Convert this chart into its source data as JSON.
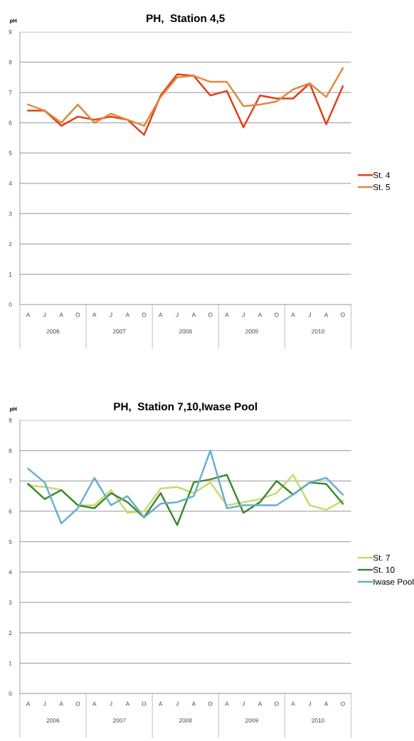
{
  "chart_data": [
    {
      "type": "line",
      "title": "PH,  Station 4,5",
      "ylabel": "pH",
      "categories": [
        "A",
        "J",
        "A",
        "O",
        "A",
        "J",
        "A",
        "O",
        "A",
        "J",
        "A",
        "O",
        "A",
        "J",
        "A",
        "O",
        "A",
        "J",
        "A",
        "O"
      ],
      "series": [
        {
          "name": "St. 4",
          "color": "#e0401a",
          "values": [
            6.4,
            6.4,
            5.9,
            6.2,
            6.1,
            6.2,
            6.1,
            5.6,
            6.9,
            7.6,
            7.55,
            6.9,
            7.05,
            5.85,
            6.9,
            6.8,
            6.8,
            7.3,
            5.95,
            7.2
          ]
        },
        {
          "name": "St. 5",
          "color": "#e08a3c",
          "values": [
            6.6,
            6.4,
            6.0,
            6.6,
            6.0,
            6.3,
            6.1,
            5.9,
            6.85,
            7.5,
            7.55,
            7.35,
            7.35,
            6.55,
            6.6,
            6.7,
            7.1,
            7.3,
            6.85,
            7.8
          ]
        }
      ],
      "ylim": [
        0,
        9
      ],
      "yticks": [
        0,
        1,
        2,
        3,
        4,
        5,
        6,
        7,
        8,
        9
      ],
      "grid": "y",
      "legend": "right",
      "marker": "none",
      "line_style": "solid",
      "annotations": [
        "2006",
        "2007",
        "2008",
        "2009",
        "2010"
      ]
    },
    {
      "type": "line",
      "title": "PH,  Station 7,10,Iwase Pool",
      "ylabel": "pH",
      "categories": [
        "A",
        "J",
        "A",
        "O",
        "A",
        "J",
        "A",
        "O",
        "A",
        "J",
        "A",
        "O",
        "A",
        "J",
        "A",
        "O",
        "A",
        "J",
        "A",
        "O"
      ],
      "series": [
        {
          "name": "St. 7",
          "color": "#c5dd6a",
          "values": [
            6.85,
            6.8,
            6.7,
            6.2,
            6.2,
            6.7,
            5.95,
            6.0,
            6.75,
            6.8,
            6.6,
            6.95,
            6.2,
            6.3,
            6.4,
            6.6,
            7.2,
            6.2,
            6.05,
            6.35
          ]
        },
        {
          "name": "St. 10",
          "color": "#3e8a2e",
          "values": [
            6.9,
            6.4,
            6.7,
            6.2,
            6.1,
            6.6,
            6.3,
            5.8,
            6.6,
            5.55,
            6.95,
            7.05,
            7.2,
            5.95,
            6.3,
            7.0,
            6.55,
            6.95,
            6.9,
            6.25
          ]
        },
        {
          "name": "Iwase Pool",
          "color": "#6aaed0",
          "values": [
            7.4,
            6.95,
            5.6,
            6.1,
            7.1,
            6.2,
            6.5,
            5.8,
            6.25,
            6.3,
            6.5,
            8.0,
            6.1,
            6.2,
            6.2,
            6.2,
            6.55,
            6.95,
            7.1,
            6.55
          ]
        }
      ],
      "ylim": [
        0,
        9
      ],
      "yticks": [
        0,
        1,
        2,
        3,
        4,
        5,
        6,
        7,
        8,
        9
      ],
      "grid": "y",
      "legend": "right",
      "marker": "none",
      "line_style": "solid",
      "annotations": [
        "2006",
        "2007",
        "2008",
        "2009",
        "2010"
      ]
    }
  ]
}
